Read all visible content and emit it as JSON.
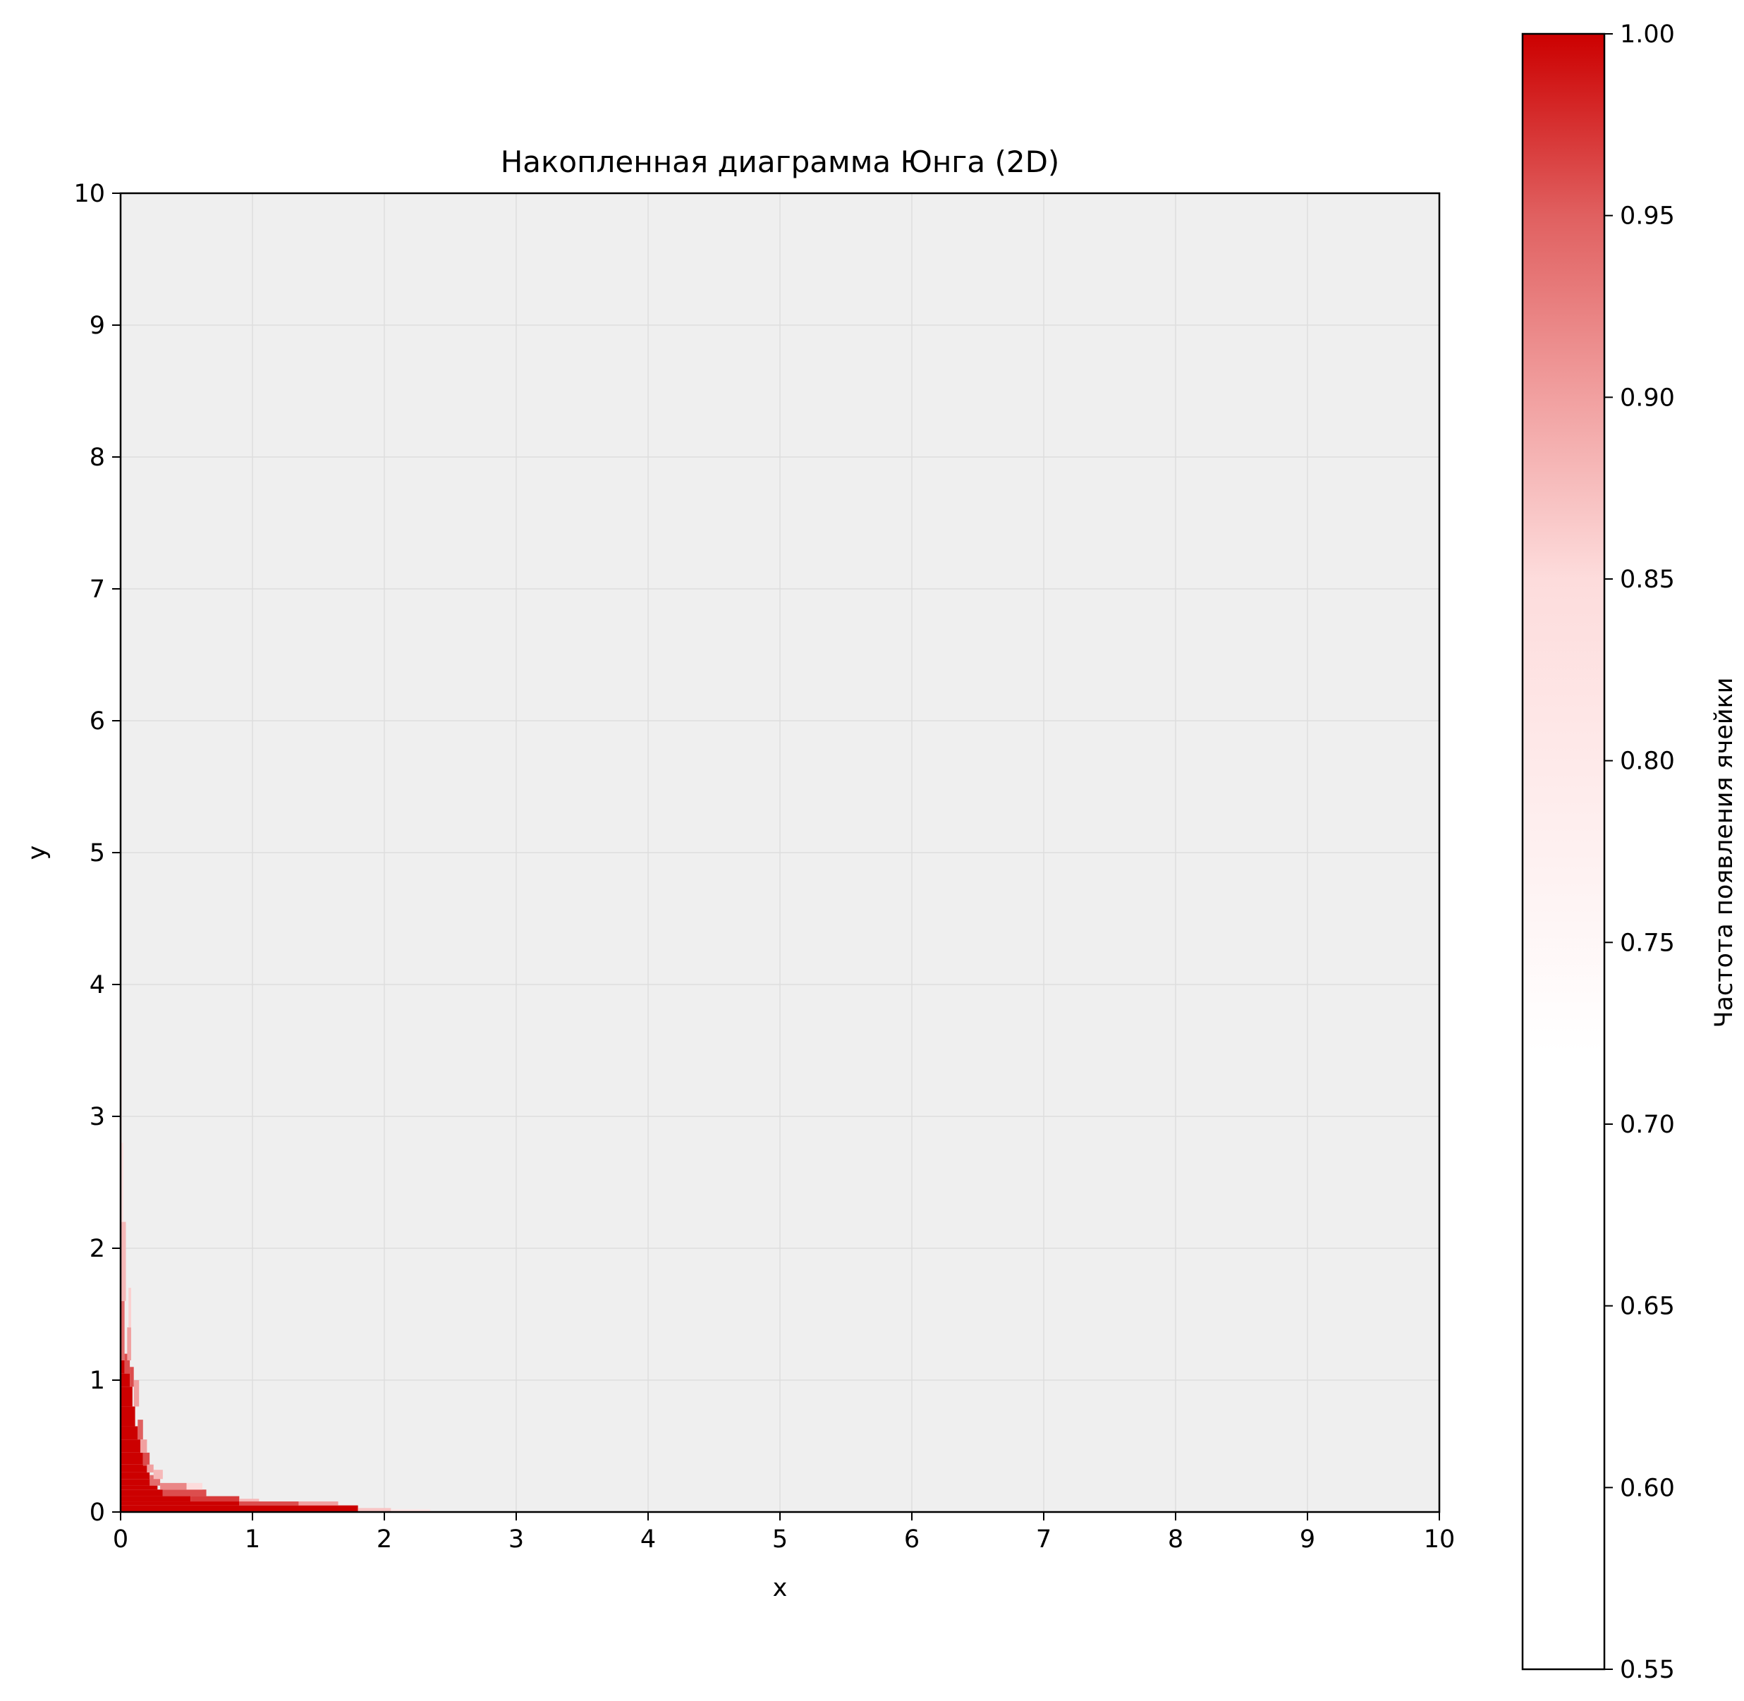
{
  "chart_data": {
    "type": "heatmap",
    "title": "Накопленная диаграмма Юнга (2D)",
    "xlabel": "x",
    "ylabel": "y",
    "xlim": [
      0,
      10
    ],
    "ylim": [
      0,
      10
    ],
    "x_ticks": [
      "0",
      "1",
      "2",
      "3",
      "4",
      "5",
      "6",
      "7",
      "8",
      "9",
      "10"
    ],
    "y_ticks": [
      "0",
      "1",
      "2",
      "3",
      "4",
      "5",
      "6",
      "7",
      "8",
      "9",
      "10"
    ],
    "grid": true,
    "background_color": "#efefef",
    "colorbar": {
      "label": "Частота появления ячейки",
      "range": [
        0.55,
        1.0
      ],
      "ticks": [
        "0.55",
        "0.60",
        "0.65",
        "0.70",
        "0.75",
        "0.80",
        "0.85",
        "0.90",
        "0.95",
        "1.00"
      ],
      "colormap": [
        {
          "value": 0.55,
          "color": "#ffffff"
        },
        {
          "value": 0.72,
          "color": "#ffffff"
        },
        {
          "value": 0.85,
          "color": "#fddcdc"
        },
        {
          "value": 0.9,
          "color": "#f1a0a0"
        },
        {
          "value": 0.95,
          "color": "#e06060"
        },
        {
          "value": 1.0,
          "color": "#cc0000"
        }
      ]
    },
    "cells": [
      {
        "x0": 0,
        "x1": 1.8,
        "y0": 0,
        "y1": 0.05,
        "value": 1.0
      },
      {
        "x0": 0,
        "x1": 0.9,
        "y0": 0.05,
        "y1": 0.08,
        "value": 1.0
      },
      {
        "x0": 0,
        "x1": 0.53,
        "y0": 0.08,
        "y1": 0.12,
        "value": 1.0
      },
      {
        "x0": 0,
        "x1": 0.32,
        "y0": 0.12,
        "y1": 0.17,
        "value": 1.0
      },
      {
        "x0": 0,
        "x1": 0.28,
        "y0": 0.17,
        "y1": 0.2,
        "value": 1.0
      },
      {
        "x0": 0,
        "x1": 0.25,
        "y0": 0.2,
        "y1": 0.25,
        "value": 1.0
      },
      {
        "x0": 0,
        "x1": 0.22,
        "y0": 0.25,
        "y1": 0.3,
        "value": 1.0
      },
      {
        "x0": 0,
        "x1": 0.2,
        "y0": 0.3,
        "y1": 0.36,
        "value": 1.0
      },
      {
        "x0": 0,
        "x1": 0.17,
        "y0": 0.36,
        "y1": 0.45,
        "value": 1.0
      },
      {
        "x0": 0,
        "x1": 0.15,
        "y0": 0.45,
        "y1": 0.55,
        "value": 1.0
      },
      {
        "x0": 0,
        "x1": 0.13,
        "y0": 0.55,
        "y1": 0.65,
        "value": 1.0
      },
      {
        "x0": 0,
        "x1": 0.11,
        "y0": 0.65,
        "y1": 0.8,
        "value": 1.0
      },
      {
        "x0": 0,
        "x1": 0.09,
        "y0": 0.8,
        "y1": 0.95,
        "value": 1.0
      },
      {
        "x0": 0,
        "x1": 0.07,
        "y0": 0.95,
        "y1": 1.05,
        "value": 1.0
      },
      {
        "x0": 0,
        "x1": 0.03,
        "y0": 1.05,
        "y1": 1.15,
        "value": 1.0
      },
      {
        "x0": 0.9,
        "x1": 1.35,
        "y0": 0.05,
        "y1": 0.08,
        "value": 0.96
      },
      {
        "x0": 0.53,
        "x1": 0.9,
        "y0": 0.08,
        "y1": 0.12,
        "value": 0.97
      },
      {
        "x0": 0.32,
        "x1": 0.65,
        "y0": 0.12,
        "y1": 0.17,
        "value": 0.96
      },
      {
        "x0": 0.3,
        "x1": 0.5,
        "y0": 0.17,
        "y1": 0.22,
        "value": 0.92
      },
      {
        "x0": 0.22,
        "x1": 0.3,
        "y0": 0.2,
        "y1": 0.28,
        "value": 0.94
      },
      {
        "x0": 0.17,
        "x1": 0.22,
        "y0": 0.35,
        "y1": 0.45,
        "value": 0.96
      },
      {
        "x0": 0.13,
        "x1": 0.17,
        "y0": 0.55,
        "y1": 0.7,
        "value": 0.95
      },
      {
        "x0": 0.07,
        "x1": 0.1,
        "y0": 0.95,
        "y1": 1.1,
        "value": 0.96
      },
      {
        "x0": 0.03,
        "x1": 0.07,
        "y0": 1.05,
        "y1": 1.2,
        "value": 0.96
      },
      {
        "x0": 1.35,
        "x1": 1.65,
        "y0": 0.05,
        "y1": 0.08,
        "value": 0.9
      },
      {
        "x0": 0.9,
        "x1": 1.05,
        "y0": 0.08,
        "y1": 0.1,
        "value": 0.88
      },
      {
        "x0": 0.5,
        "x1": 0.62,
        "y0": 0.17,
        "y1": 0.22,
        "value": 0.85
      },
      {
        "x0": 0.25,
        "x1": 0.32,
        "y0": 0.25,
        "y1": 0.32,
        "value": 0.88
      },
      {
        "x0": 0.2,
        "x1": 0.25,
        "y0": 0.3,
        "y1": 0.36,
        "value": 0.9
      },
      {
        "x0": 0.15,
        "x1": 0.2,
        "y0": 0.45,
        "y1": 0.55,
        "value": 0.9
      },
      {
        "x0": 0.1,
        "x1": 0.14,
        "y0": 0.8,
        "y1": 1.0,
        "value": 0.9
      },
      {
        "x0": 0.05,
        "x1": 0.08,
        "y0": 1.15,
        "y1": 1.4,
        "value": 0.9
      },
      {
        "x0": 0,
        "x1": 0.03,
        "y0": 1.15,
        "y1": 1.6,
        "value": 0.94
      },
      {
        "x0": 1.8,
        "x1": 2.05,
        "y0": 0,
        "y1": 0.03,
        "value": 0.87
      },
      {
        "x0": 2.05,
        "x1": 2.35,
        "y0": 0,
        "y1": 0.02,
        "value": 0.82
      },
      {
        "x0": 0.06,
        "x1": 0.08,
        "y0": 1.4,
        "y1": 1.7,
        "value": 0.86
      },
      {
        "x0": 0,
        "x1": 0.04,
        "y0": 1.6,
        "y1": 2.2,
        "value": 0.88
      },
      {
        "x0": 0,
        "x1": 0.02,
        "y0": 2.2,
        "y1": 2.8,
        "value": 0.84
      },
      {
        "x0": 0,
        "x1": 0.01,
        "y0": 2.8,
        "y1": 3.6,
        "value": 0.8
      }
    ]
  }
}
